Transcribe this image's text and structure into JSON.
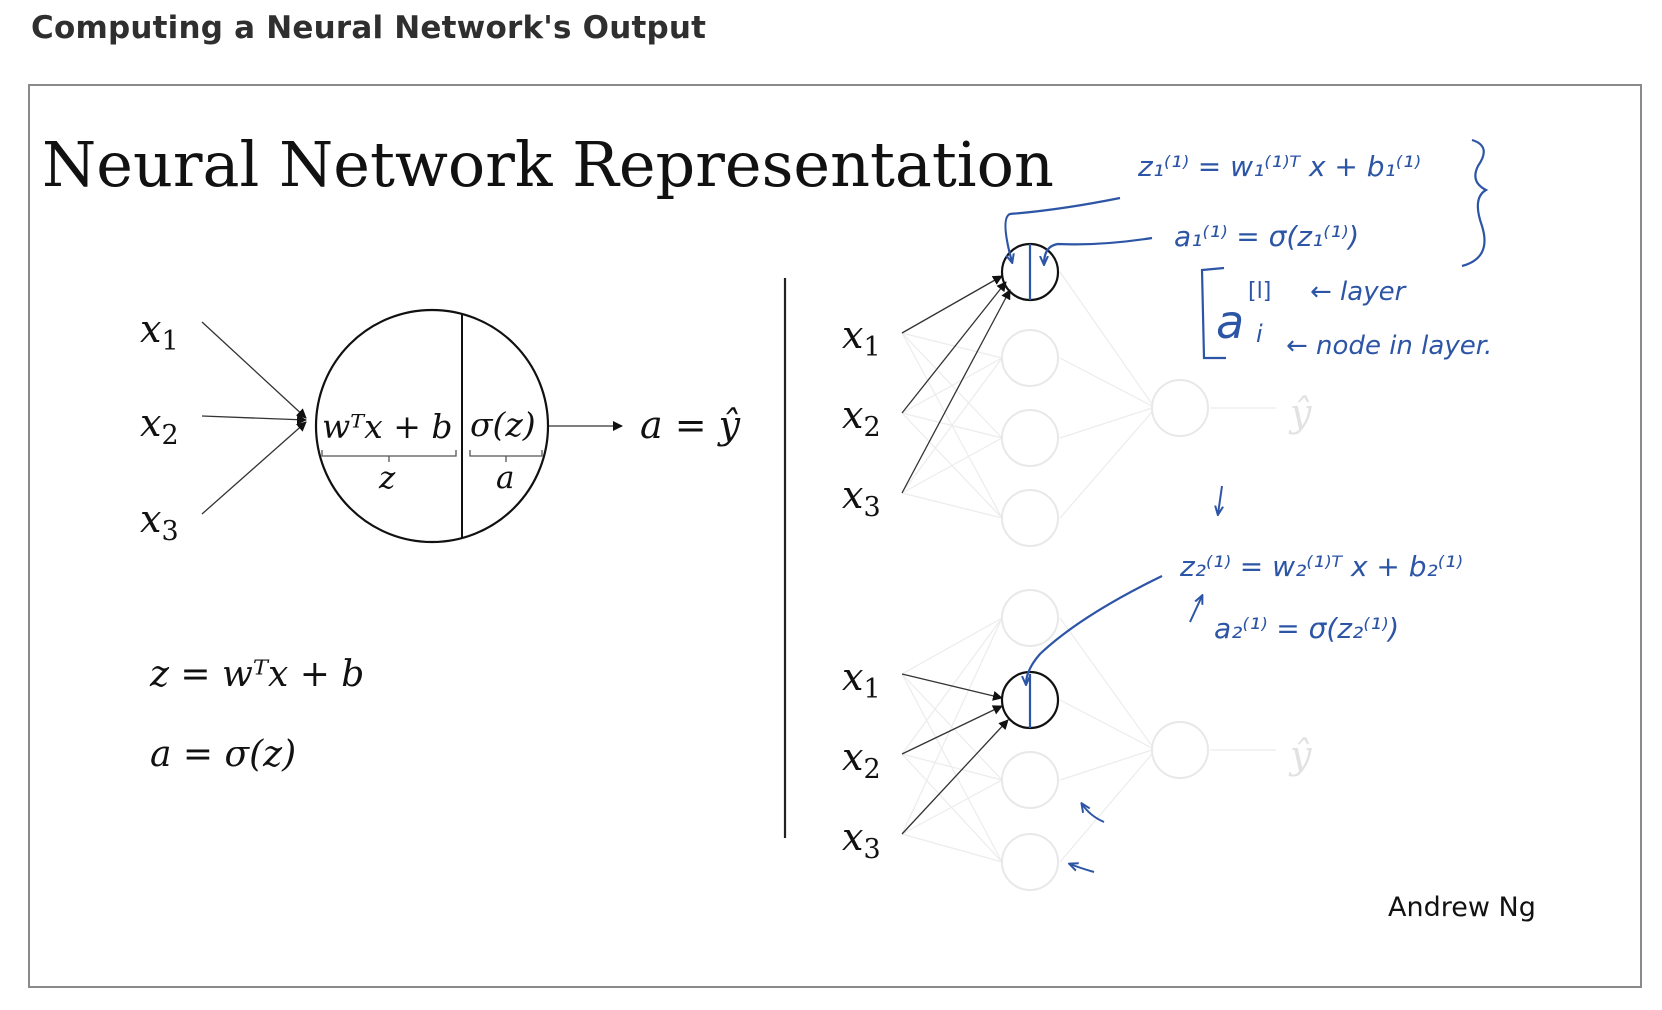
{
  "page": {
    "title": "Computing a Neural Network's Output"
  },
  "slide": {
    "heading": "Neural Network Representation",
    "credit": "Andrew Ng",
    "neuron_diagram": {
      "inputs": [
        "x",
        "x",
        "x"
      ],
      "input_subscripts": [
        "1",
        "2",
        "3"
      ],
      "linear_part": "wᵀx + b",
      "linear_label": "z",
      "activation_part": "σ(z)",
      "activation_label": "a",
      "output": "a = ŷ"
    },
    "equations": {
      "z_eq": "z = wᵀx + b",
      "a_eq": "a = σ(z)"
    },
    "network_top": {
      "inputs": [
        "x",
        "x",
        "x"
      ],
      "input_subscripts": [
        "1",
        "2",
        "3"
      ],
      "output": "ŷ"
    },
    "network_bottom": {
      "inputs": [
        "x",
        "x",
        "x"
      ],
      "input_subscripts": [
        "1",
        "2",
        "3"
      ],
      "output": "ŷ"
    },
    "handwriting": {
      "top_z": "z₁⁽¹⁾ = w₁⁽¹⁾ᵀ x + b₁⁽¹⁾",
      "top_a": "a₁⁽¹⁾ = σ(z₁⁽¹⁾)",
      "notation_a": "a",
      "notation_layer_sup": "[l]",
      "notation_layer_note": "← layer",
      "notation_node_sub": "i",
      "notation_node_note": "← node in layer.",
      "bottom_z": "z₂⁽¹⁾ = w₂⁽¹⁾ᵀ x + b₂⁽¹⁾",
      "bottom_a": "a₂⁽¹⁾ = σ(z₂⁽¹⁾)"
    },
    "colors": {
      "ink": "#111111",
      "handwriting": "#2d55a6",
      "faded": "#e6e6e6"
    }
  }
}
